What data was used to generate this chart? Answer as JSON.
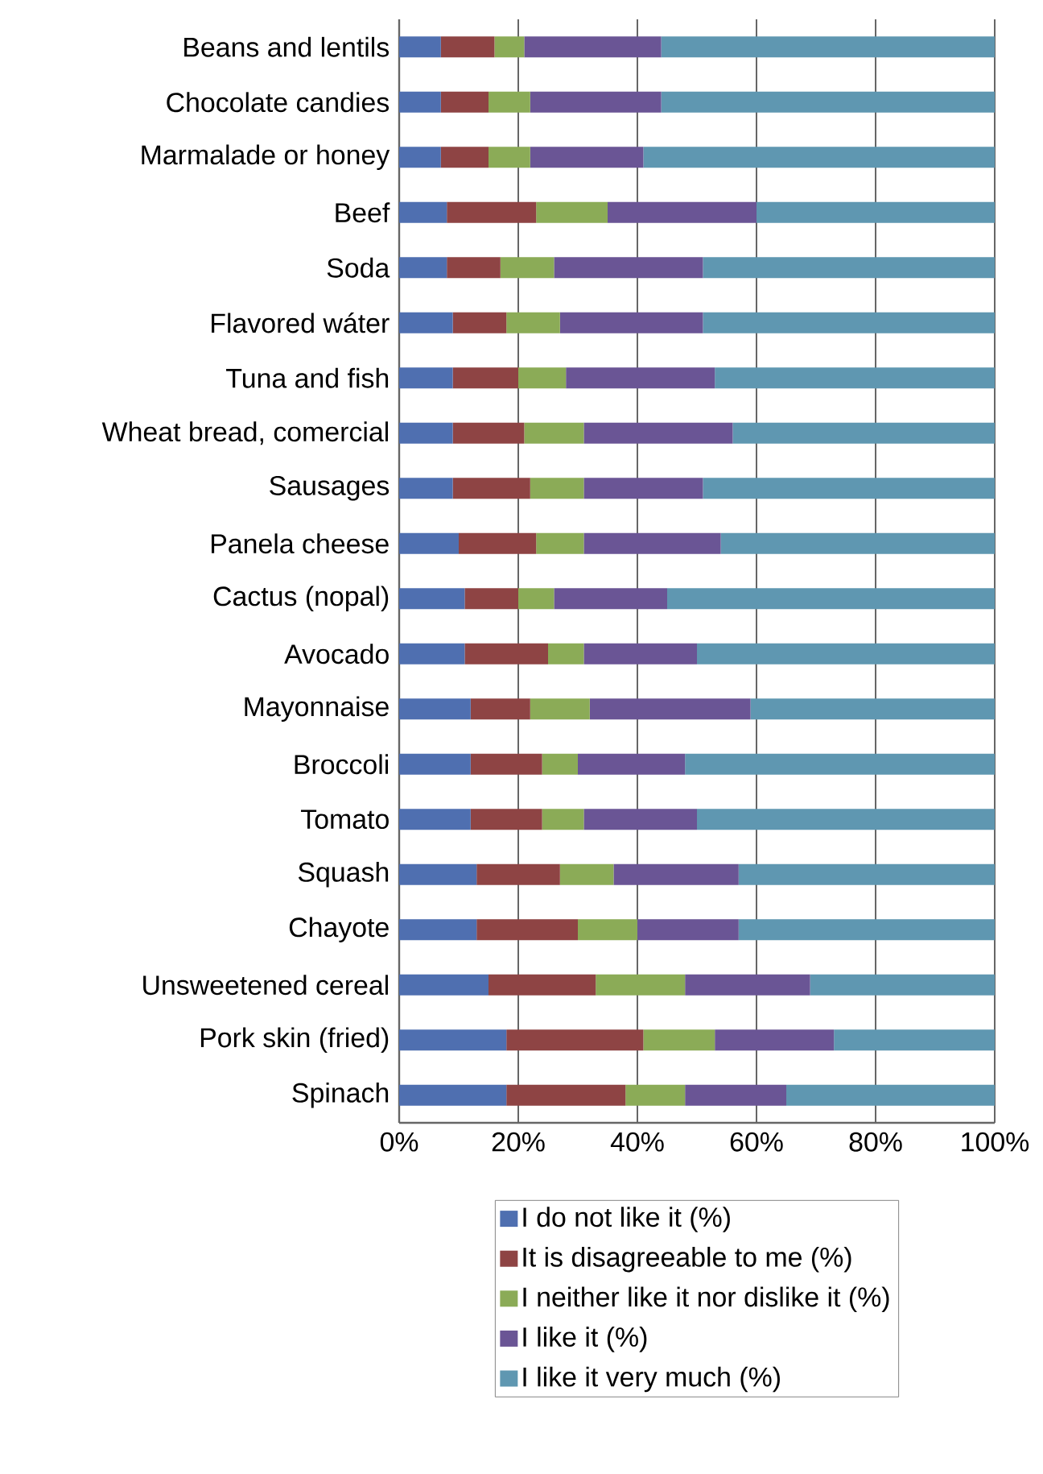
{
  "chart_data": {
    "type": "bar",
    "orientation": "horizontal",
    "stacked": true,
    "categories": [
      "Beans and lentils",
      "Chocolate candies",
      "Marmalade or honey",
      "Beef",
      "Soda",
      "Flavored wáter",
      "Tuna and fish",
      "Wheat bread, comercial",
      "Sausages",
      "Panela cheese",
      "Cactus (nopal)",
      "Avocado",
      "Mayonnaise",
      "Broccoli",
      "Tomato",
      "Squash",
      "Chayote",
      "Unsweetened cereal",
      "Pork skin (fried)",
      "Spinach"
    ],
    "series": [
      {
        "name": "I do not like it (%)",
        "color": "#4f6fb0",
        "values": [
          7,
          7,
          7,
          8,
          8,
          9,
          9,
          9,
          9,
          10,
          11,
          11,
          12,
          12,
          12,
          13,
          13,
          15,
          18,
          18
        ]
      },
      {
        "name": "It is disagreeable to me (%)",
        "color": "#8e4444",
        "values": [
          9,
          8,
          8,
          15,
          9,
          9,
          11,
          12,
          13,
          13,
          9,
          14,
          10,
          12,
          12,
          14,
          17,
          18,
          23,
          20
        ]
      },
      {
        "name": "I neither like it nor dislike it (%)",
        "color": "#8bab57",
        "values": [
          5,
          7,
          7,
          12,
          9,
          9,
          8,
          10,
          9,
          8,
          6,
          6,
          10,
          6,
          7,
          9,
          10,
          15,
          12,
          10
        ]
      },
      {
        "name": "I like it (%)",
        "color": "#6a5595",
        "values": [
          23,
          22,
          19,
          25,
          25,
          24,
          25,
          25,
          20,
          23,
          19,
          19,
          27,
          18,
          19,
          21,
          17,
          21,
          20,
          17
        ]
      },
      {
        "name": "I like it very much (%)",
        "color": "#5f97b1",
        "values": [
          56,
          56,
          59,
          40,
          49,
          49,
          47,
          44,
          49,
          46,
          55,
          50,
          41,
          52,
          50,
          43,
          43,
          31,
          27,
          35
        ]
      }
    ],
    "xlim": [
      0,
      100
    ],
    "xticks": [
      {
        "value": 0,
        "label": "0%"
      },
      {
        "value": 20,
        "label": "20%"
      },
      {
        "value": 40,
        "label": "40%"
      },
      {
        "value": 60,
        "label": "60%"
      },
      {
        "value": 80,
        "label": "80%"
      },
      {
        "value": 100,
        "label": "100%"
      }
    ],
    "grid": "x",
    "legend": "bottom"
  }
}
